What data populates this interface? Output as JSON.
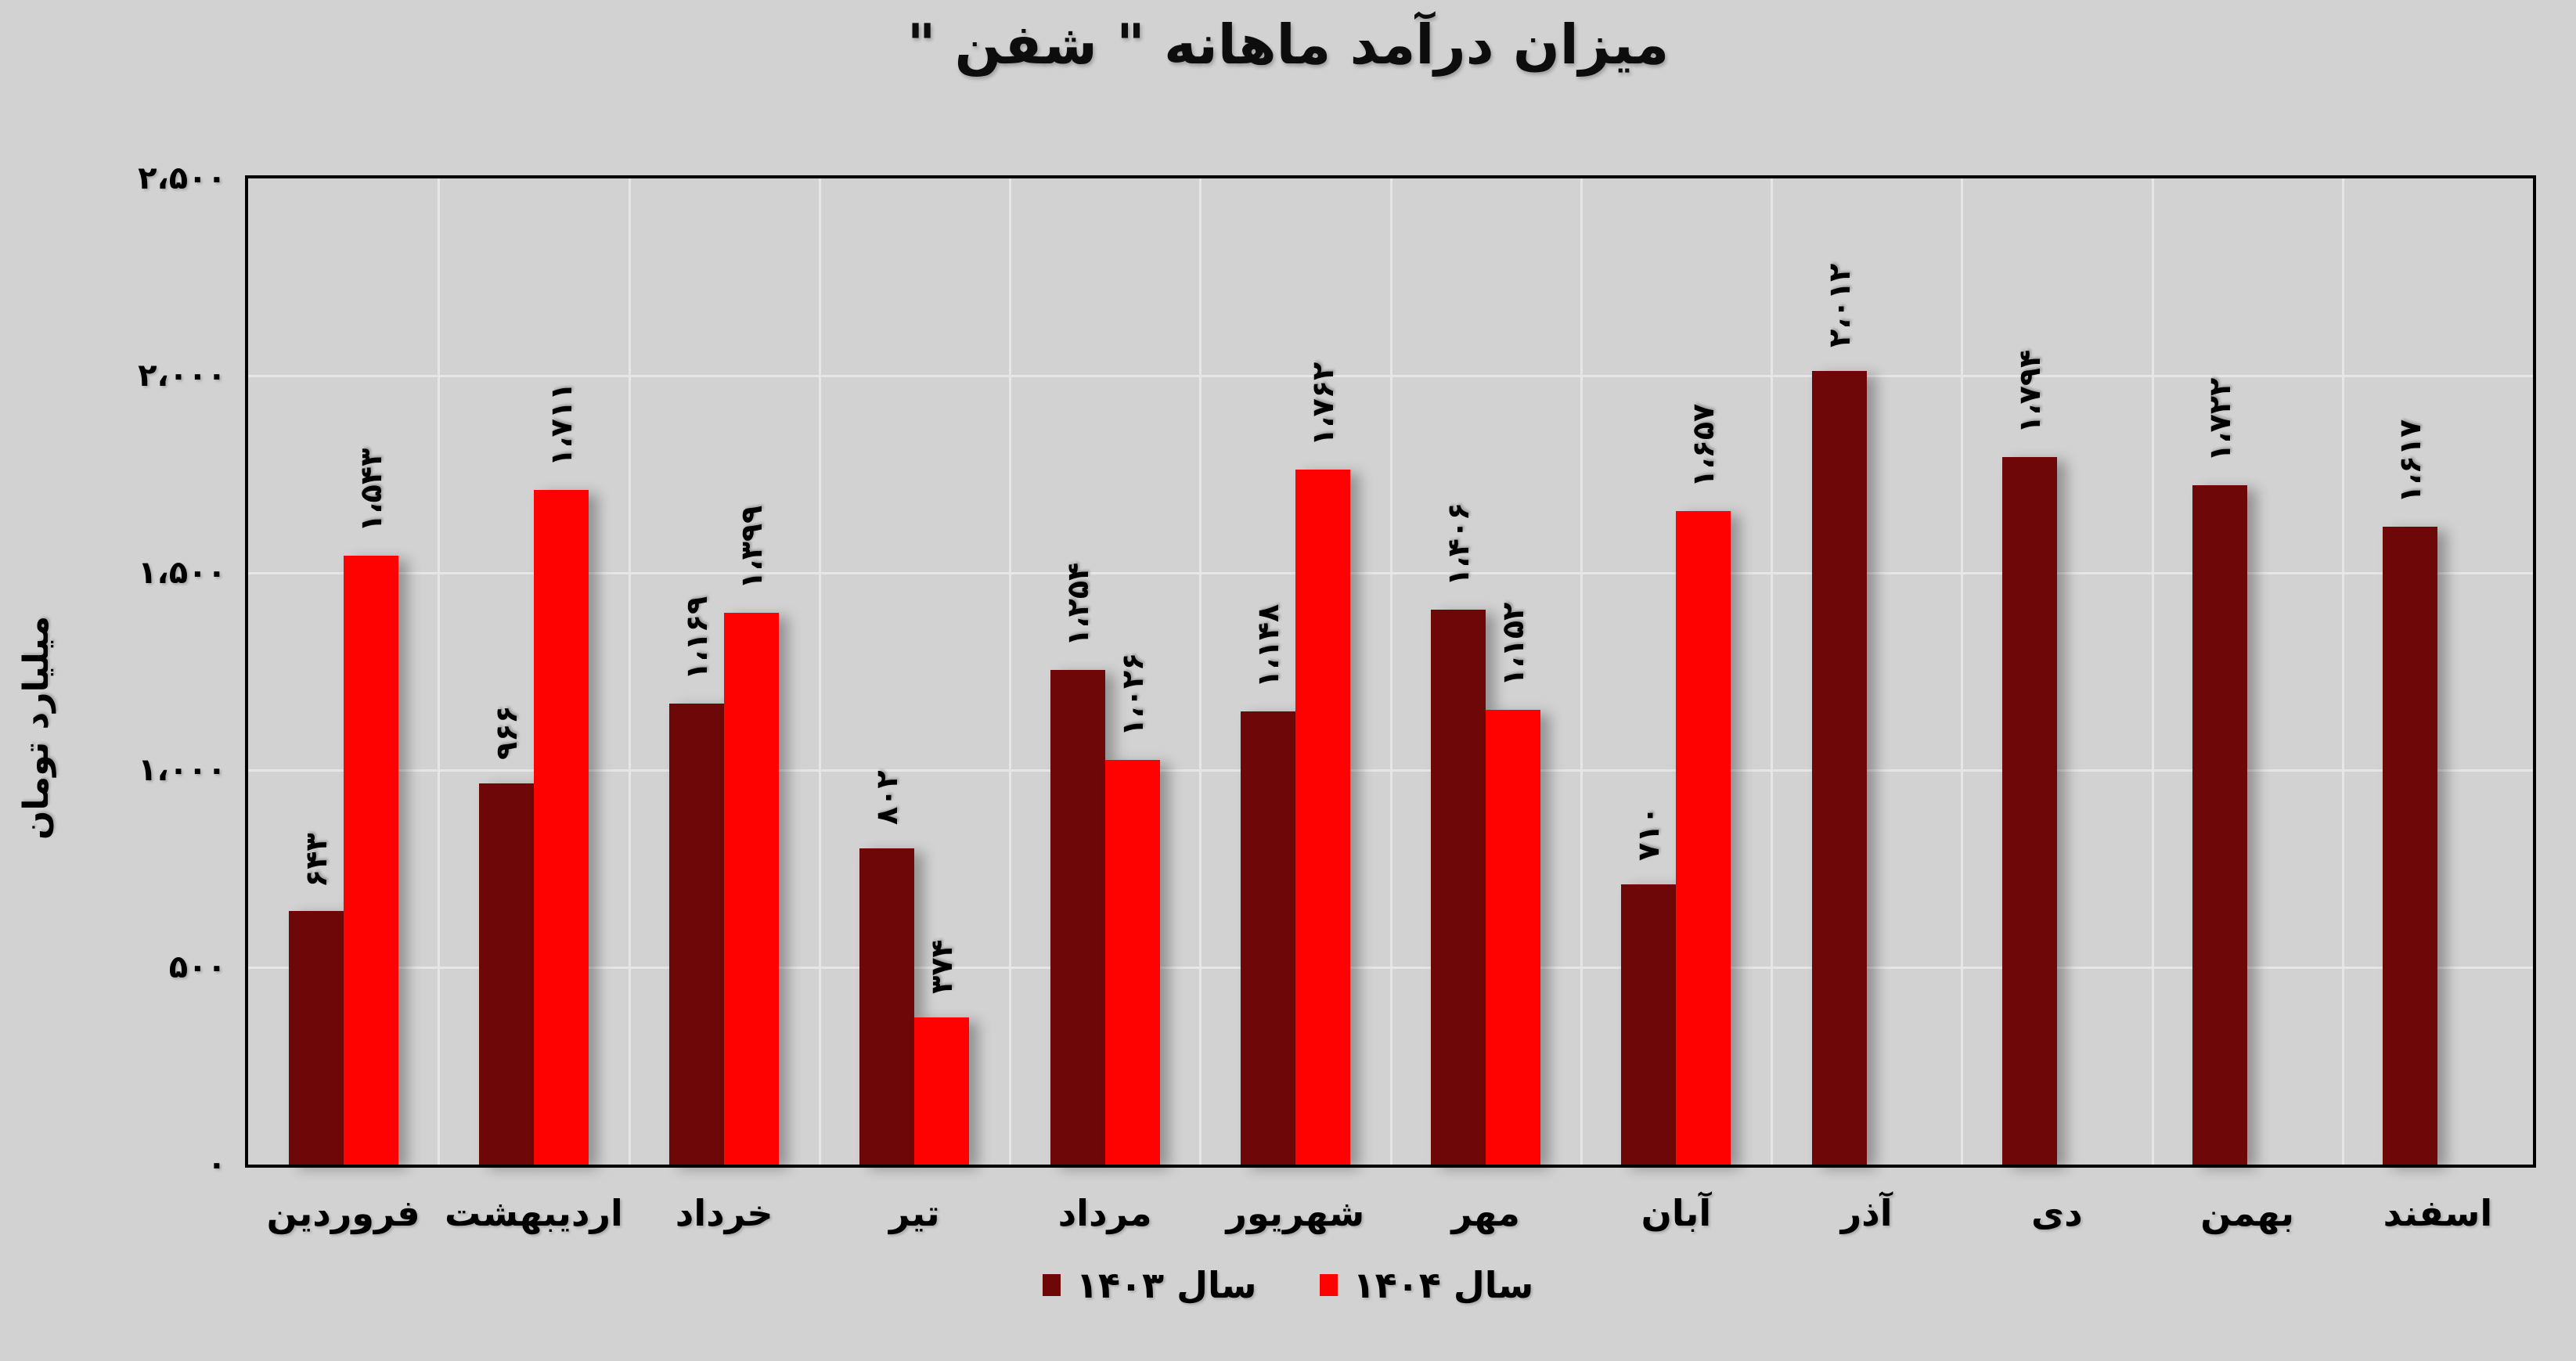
{
  "title": "میزان درآمد ماهانه \" شفن \"",
  "y_axis_title": "میلیارد تومان",
  "legend": [
    {
      "label": "سال ۱۴۰۳",
      "color": "#6e0808"
    },
    {
      "label": "سال ۱۴۰۴",
      "color": "#fe0101"
    }
  ],
  "colors": {
    "background": "#d2d2d2",
    "series_1403": "#6e0808",
    "series_1404": "#fe0101",
    "gridline": "#e6e6e6",
    "axis_border": "#000000",
    "text": "#000000"
  },
  "chart_data": {
    "type": "bar",
    "title": "میزان درآمد ماهانه \" شفن \"",
    "ylabel": "میلیارد تومان",
    "categories": [
      "فروردین",
      "اردیبهشت",
      "خرداد",
      "تیر",
      "مرداد",
      "شهریور",
      "مهر",
      "آبان",
      "آذر",
      "دی",
      "بهمن",
      "اسفند"
    ],
    "series": [
      {
        "name": "سال ۱۴۰۳",
        "color": "#6e0808",
        "values": [
          643,
          966,
          1169,
          802,
          1254,
          1148,
          1406,
          710,
          2012,
          1794,
          1722,
          1617
        ],
        "value_labels": [
          "۶۴۳",
          "۹۶۶",
          "۱،۱۶۹",
          "۸۰۲",
          "۱،۲۵۴",
          "۱،۱۴۸",
          "۱،۴۰۶",
          "۷۱۰",
          "۲،۰۱۲",
          "۱،۷۹۴",
          "۱،۷۲۲",
          "۱،۶۱۷"
        ]
      },
      {
        "name": "سال ۱۴۰۴",
        "color": "#fe0101",
        "values": [
          1543,
          1711,
          1399,
          374,
          1026,
          1762,
          1152,
          1657,
          null,
          null,
          null,
          null
        ],
        "value_labels": [
          "۱،۵۴۳",
          "۱،۷۱۱",
          "۱،۳۹۹",
          "۳۷۴",
          "۱،۰۲۶",
          "۱،۷۶۲",
          "۱،۱۵۲",
          "۱،۶۵۷",
          null,
          null,
          null,
          null
        ]
      }
    ],
    "ylim": [
      0,
      2500
    ],
    "ytick_step": 500,
    "ytick_labels": [
      "۰",
      "۵۰۰",
      "۱،۰۰۰",
      "۱،۵۰۰",
      "۲،۰۰۰",
      "۲،۵۰۰"
    ],
    "grid": true,
    "legend_position": "bottom"
  }
}
